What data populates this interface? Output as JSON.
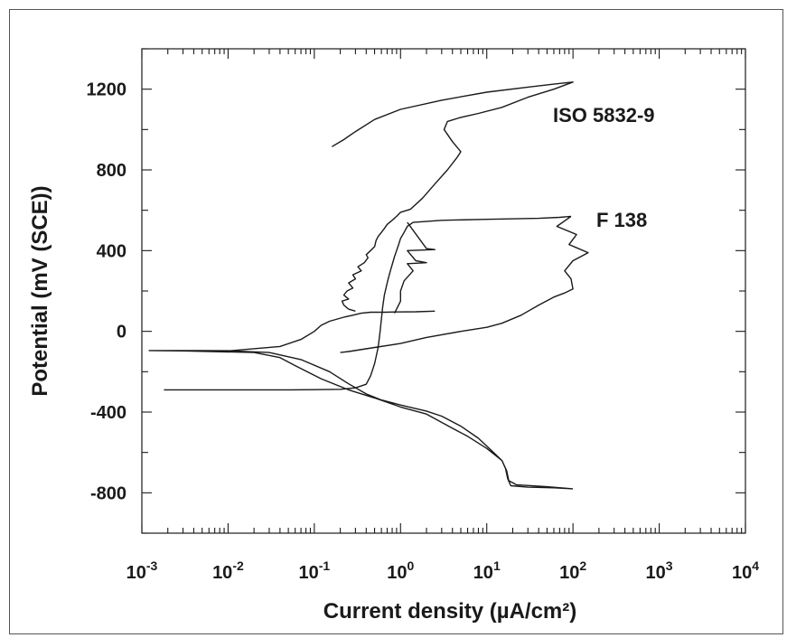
{
  "chart_data": {
    "type": "line",
    "title": "",
    "xlabel": "Current density (µA/cm²)",
    "ylabel": "Potential (mV (SCE))",
    "xscale": "log",
    "xlim": [
      0.001,
      10000
    ],
    "ylim": [
      -1000,
      1200
    ],
    "x_tick_values": [
      0.001,
      0.01,
      0.1,
      1,
      10,
      100,
      1000,
      10000
    ],
    "x_tick_labels": [
      {
        "base": "10",
        "exp": "-3"
      },
      {
        "base": "10",
        "exp": "-2"
      },
      {
        "base": "10",
        "exp": "-1"
      },
      {
        "base": "10",
        "exp": "0"
      },
      {
        "base": "10",
        "exp": "1"
      },
      {
        "base": "10",
        "exp": "2"
      },
      {
        "base": "10",
        "exp": "3"
      },
      {
        "base": "10",
        "exp": "4"
      }
    ],
    "y_tick_values": [
      -800,
      -400,
      0,
      400,
      800,
      1200
    ],
    "y_tick_labels": [
      "-800",
      "-400",
      "0",
      "400",
      "800",
      "1200"
    ],
    "grid": false,
    "legend": "none",
    "series_labels": [
      "ISO 5832-9",
      "F 138"
    ],
    "series": [
      {
        "name": "ISO 5832-9",
        "points": [
          [
            0.0012,
            -95
          ],
          [
            0.005,
            -95
          ],
          [
            0.01,
            -96
          ],
          [
            0.03,
            -105
          ],
          [
            0.07,
            -140
          ],
          [
            0.15,
            -200
          ],
          [
            0.25,
            -260
          ],
          [
            0.4,
            -310
          ],
          [
            0.6,
            -340
          ],
          [
            1,
            -365
          ],
          [
            2,
            -395
          ],
          [
            3,
            -420
          ],
          [
            5,
            -470
          ],
          [
            8,
            -530
          ],
          [
            12,
            -600
          ],
          [
            15,
            -640
          ],
          [
            16.5,
            -680
          ],
          [
            17.5,
            -730
          ],
          [
            19,
            -765
          ],
          [
            30,
            -772
          ],
          [
            60,
            -775
          ],
          [
            100,
            -780
          ],
          null,
          [
            100,
            -780
          ],
          [
            50,
            -770
          ],
          [
            22,
            -760
          ],
          [
            18,
            -740
          ],
          [
            17,
            -690
          ],
          [
            15,
            -640
          ],
          [
            10,
            -580
          ],
          [
            6,
            -520
          ],
          [
            4,
            -480
          ],
          [
            2,
            -410
          ],
          [
            1,
            -375
          ],
          [
            0.5,
            -330
          ],
          [
            0.25,
            -290
          ],
          [
            0.12,
            -235
          ],
          [
            0.06,
            -170
          ],
          [
            0.04,
            -130
          ],
          [
            0.02,
            -105
          ],
          [
            0.003,
            -97
          ],
          [
            0.0012,
            -95
          ],
          null,
          [
            0.01,
            -97
          ],
          [
            0.04,
            -75
          ],
          [
            0.07,
            -40
          ],
          [
            0.1,
            0
          ],
          [
            0.12,
            30
          ],
          [
            0.15,
            50
          ],
          [
            0.22,
            70
          ],
          [
            0.28,
            80
          ],
          [
            0.35,
            90
          ],
          [
            0.45,
            95
          ],
          [
            0.65,
            95
          ],
          [
            0.9,
            96
          ],
          [
            1.5,
            97
          ],
          [
            2.5,
            100
          ],
          null,
          [
            0.3,
            100
          ],
          [
            0.25,
            110
          ],
          [
            0.22,
            130
          ],
          [
            0.21,
            150
          ],
          [
            0.25,
            160
          ],
          [
            0.22,
            180
          ],
          [
            0.24,
            200
          ],
          [
            0.28,
            215
          ],
          [
            0.25,
            240
          ],
          [
            0.3,
            260
          ],
          [
            0.28,
            280
          ],
          [
            0.35,
            300
          ],
          [
            0.32,
            320
          ],
          [
            0.38,
            340
          ],
          [
            0.42,
            365
          ],
          [
            0.4,
            380
          ],
          [
            0.45,
            400
          ],
          [
            0.5,
            420
          ],
          [
            0.52,
            450
          ],
          [
            0.55,
            470
          ],
          [
            0.6,
            490
          ],
          [
            0.65,
            510
          ],
          [
            0.7,
            530
          ],
          [
            0.8,
            550
          ],
          [
            0.9,
            570
          ],
          [
            1,
            590
          ],
          [
            1.3,
            605
          ],
          [
            1.8,
            660
          ],
          [
            2.5,
            730
          ],
          [
            3.5,
            800
          ],
          [
            4.5,
            860
          ],
          [
            5,
            890
          ],
          [
            4,
            940
          ],
          [
            3.2,
            1000
          ],
          [
            3.5,
            1040
          ],
          [
            5,
            1060
          ],
          [
            8,
            1080
          ],
          [
            15,
            1110
          ],
          [
            30,
            1160
          ],
          [
            60,
            1200
          ],
          [
            100,
            1235
          ],
          [
            60,
            1225
          ],
          [
            30,
            1210
          ],
          [
            10,
            1185
          ],
          [
            3,
            1145
          ],
          [
            1,
            1100
          ],
          [
            0.5,
            1050
          ],
          [
            0.3,
            990
          ],
          [
            0.22,
            950
          ],
          [
            0.16,
            915
          ]
        ]
      },
      {
        "name": "F 138",
        "points": [
          [
            0.0018,
            -290
          ],
          [
            0.01,
            -290
          ],
          [
            0.05,
            -290
          ],
          [
            0.1,
            -289
          ],
          [
            0.2,
            -287
          ],
          [
            0.3,
            -280
          ],
          [
            0.4,
            -262
          ],
          [
            0.45,
            -220
          ],
          [
            0.5,
            -160
          ],
          [
            0.55,
            -80
          ],
          [
            0.58,
            0
          ],
          [
            0.6,
            60
          ],
          [
            0.62,
            120
          ],
          [
            0.65,
            180
          ],
          [
            0.7,
            240
          ],
          [
            0.75,
            290
          ],
          [
            0.8,
            330
          ],
          [
            0.85,
            370
          ],
          [
            0.9,
            400
          ],
          [
            0.95,
            430
          ],
          [
            1,
            460
          ],
          [
            1.1,
            490
          ],
          [
            1.2,
            520
          ],
          [
            1.4,
            540
          ],
          [
            3,
            550
          ],
          [
            10,
            555
          ],
          [
            40,
            560
          ],
          [
            70,
            565
          ],
          [
            85,
            568
          ],
          [
            95,
            570
          ],
          null,
          [
            1.2,
            540
          ],
          [
            2,
            410
          ],
          [
            2.5,
            405
          ],
          [
            1.2,
            400
          ],
          [
            1.5,
            350
          ],
          [
            2,
            340
          ],
          [
            1.2,
            335
          ],
          [
            1.4,
            300
          ],
          [
            1.1,
            250
          ],
          [
            1,
            200
          ],
          [
            1,
            150
          ],
          [
            0.9,
            110
          ],
          [
            0.85,
            90
          ],
          null,
          [
            95,
            570
          ],
          [
            65,
            520
          ],
          [
            110,
            480
          ],
          [
            90,
            430
          ],
          [
            150,
            390
          ],
          [
            100,
            350
          ],
          [
            80,
            300
          ],
          [
            95,
            260
          ],
          [
            100,
            210
          ],
          [
            80,
            190
          ],
          [
            60,
            170
          ],
          [
            40,
            130
          ],
          [
            25,
            80
          ],
          [
            15,
            40
          ],
          [
            10,
            20
          ],
          [
            5,
            0
          ],
          [
            2,
            -30
          ],
          [
            1,
            -60
          ],
          [
            0.5,
            -80
          ],
          [
            0.25,
            -100
          ],
          [
            0.2,
            -105
          ]
        ]
      }
    ]
  }
}
